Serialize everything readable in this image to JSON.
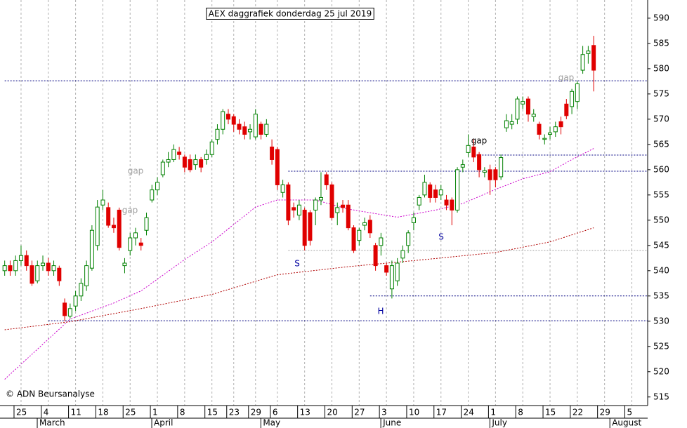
{
  "chart_data": {
    "type": "candlestick",
    "title": "AEX daggrafiek donderdag 25 jul 2019",
    "copyright": "© ADN Beursanalyse",
    "up_color": "#008000",
    "down_color": "#e00000",
    "open": [
      540,
      541,
      540,
      542,
      543,
      541,
      538,
      541,
      541.5,
      540,
      540.5,
      533.6,
      531,
      533,
      535,
      537,
      540.5,
      545,
      553,
      552.5,
      549,
      552,
      541,
      544,
      546.5,
      545.5,
      548,
      554,
      556,
      559,
      561.5,
      562,
      563.5,
      562.5,
      562,
      561,
      562,
      562,
      563,
      566,
      568,
      571,
      570.5,
      569,
      568.5,
      567.5,
      566.5,
      569,
      567,
      564.5,
      564,
      555.5,
      557,
      552.5,
      551,
      552,
      551.5,
      552,
      554,
      559,
      557,
      551.5,
      553,
      553,
      548.5,
      546,
      549,
      550,
      545,
      545,
      541,
      536.4,
      538,
      542.5,
      545,
      549.5,
      553,
      555,
      557,
      556,
      555,
      554,
      554,
      552,
      560.5,
      563.4,
      564.5,
      563,
      559.5,
      560,
      560,
      558.6,
      568.3,
      569,
      570,
      573,
      574,
      570.5,
      569,
      566,
      567,
      567.5,
      569.5,
      573,
      572.5,
      573.5,
      579.7,
      583,
      584.6
    ],
    "high": [
      542,
      542,
      543,
      545,
      544,
      542,
      542,
      543,
      542.5,
      542,
      541,
      534.5,
      533.5,
      536,
      538.5,
      542,
      549,
      554,
      556,
      553.5,
      550.5,
      552.5,
      542.5,
      547.5,
      548.5,
      546.5,
      551.5,
      557,
      558.5,
      562,
      563.5,
      565,
      564.5,
      563,
      563,
      563,
      562.5,
      564,
      566,
      569,
      572,
      572,
      571,
      570,
      569.5,
      569,
      572,
      569.5,
      570,
      566,
      564.5,
      558,
      557.5,
      553.5,
      554,
      552.5,
      552,
      554.5,
      559.5,
      559.5,
      557.5,
      553.5,
      554,
      554,
      549,
      548.5,
      550.5,
      551,
      545.5,
      547.5,
      541.5,
      542,
      542.5,
      545,
      548,
      551.5,
      555,
      559,
      557.5,
      557,
      557,
      555,
      554.5,
      560.5,
      562,
      567,
      566,
      563.5,
      560.5,
      561,
      560.5,
      563,
      571,
      571,
      574.5,
      574.5,
      574.5,
      572,
      569.5,
      567,
      568.5,
      569.5,
      570.5,
      574,
      576,
      577.5,
      584.5,
      584.5,
      586.5
    ],
    "low": [
      539,
      539,
      539,
      541,
      540,
      537,
      537.5,
      540,
      539,
      539,
      537,
      530,
      530.5,
      532,
      534,
      536,
      540,
      544,
      552,
      548.5,
      547.5,
      544,
      539.5,
      543,
      545,
      544,
      547,
      553.5,
      555,
      558.5,
      560.5,
      561.5,
      562,
      559.5,
      559.5,
      560,
      559.5,
      561,
      562.5,
      565,
      567,
      569,
      567.5,
      567,
      566,
      566,
      566,
      566,
      566.5,
      561,
      556,
      554.5,
      549,
      550.5,
      550,
      544,
      545,
      549,
      553,
      556,
      550,
      549,
      551.5,
      548,
      543.5,
      545,
      548,
      546.5,
      540,
      543,
      539,
      534.5,
      537,
      541.5,
      543.5,
      548,
      552,
      554.5,
      553.5,
      553.5,
      554,
      552,
      549,
      551.5,
      559.5,
      562.5,
      561.5,
      558.5,
      558.5,
      555,
      556.5,
      558,
      567.5,
      568,
      569,
      572,
      569.5,
      569.5,
      566,
      565,
      566,
      566.5,
      567,
      570,
      571,
      572,
      579,
      581,
      575.5
    ],
    "close": [
      541,
      540,
      542,
      543,
      541,
      537.5,
      541,
      541.5,
      540,
      541,
      538,
      531.1,
      532.5,
      535,
      537.5,
      541,
      548,
      552.6,
      554,
      549,
      548.5,
      544.6,
      541.5,
      546.5,
      547.5,
      545,
      550.5,
      556,
      557.5,
      561.5,
      562,
      564,
      563,
      560.5,
      560,
      562,
      560.5,
      563,
      565.5,
      568,
      571.5,
      570,
      569,
      568,
      567,
      568,
      571,
      567,
      569,
      562,
      557,
      557,
      550,
      552,
      553,
      545,
      546,
      554,
      554.5,
      557,
      550.5,
      552.5,
      552.5,
      548.5,
      544,
      548,
      549.5,
      547.5,
      541,
      546.5,
      539.7,
      541,
      541.5,
      544,
      547.5,
      550.5,
      554.5,
      557.5,
      554.5,
      554.5,
      556,
      553,
      552,
      560,
      561,
      564.8,
      562.5,
      560,
      559.8,
      558,
      558,
      562.4,
      569.7,
      569.5,
      574,
      573.5,
      571,
      571,
      567,
      566.2,
      567.3,
      568.5,
      568.5,
      570.7,
      575.5,
      577,
      582.8,
      583.5,
      579.7
    ],
    "moving_averages": [
      {
        "color": "#cc00cc",
        "x": [
          0,
          12,
          20,
          25,
          33,
          38,
          46,
          50,
          57,
          63,
          68,
          72,
          79,
          84,
          90,
          95,
          100,
          104,
          108
        ],
        "values": [
          518.5,
          530.4,
          533.6,
          536,
          542.2,
          545.7,
          552.6,
          554,
          554,
          552.2,
          551.3,
          550.6,
          552,
          553.3,
          556.1,
          558.2,
          559.6,
          562,
          564.2
        ]
      },
      {
        "color": "#b00000",
        "x": [
          0,
          12,
          25,
          38,
          50,
          63,
          77,
          90,
          100,
          108
        ],
        "values": [
          528.3,
          529.9,
          532.5,
          535.3,
          539.2,
          540.8,
          542.2,
          543.6,
          545.7,
          548.5
        ]
      }
    ],
    "levels": [
      {
        "value": 577.6,
        "from": 0,
        "color": "#000080"
      },
      {
        "value": 562.9,
        "from": 86,
        "color": "#000080"
      },
      {
        "value": 559.7,
        "from": 52,
        "color": "#000080"
      },
      {
        "value": 544,
        "from": 52,
        "color": "#a0a0a0"
      },
      {
        "value": 535,
        "from": 67,
        "color": "#000080"
      },
      {
        "value": 530.1,
        "from": 8,
        "color": "#000080"
      }
    ],
    "annotations": [
      {
        "text": "gap",
        "color": "#a0a0a0"
      },
      {
        "text": "gap",
        "color": "#a0a0a0"
      },
      {
        "text": "gap",
        "color": "#a0a0a0"
      },
      {
        "text": "gap",
        "color": "#000000"
      },
      {
        "text": "S",
        "color": "#0000a0"
      },
      {
        "text": "S",
        "color": "#0000a0"
      },
      {
        "text": "H",
        "color": "#0000a0"
      }
    ],
    "xlim": [
      -0.86,
      117.9
    ],
    "ylim": [
      513.3,
      593.6
    ],
    "yticks": [
      515,
      520,
      525,
      530,
      535,
      540,
      545,
      550,
      555,
      560,
      565,
      570,
      575,
      580,
      585,
      590
    ],
    "xticks": [
      {
        "value": 3,
        "label": "25"
      },
      {
        "value": 8,
        "label": "4"
      },
      {
        "value": 13,
        "label": "11"
      },
      {
        "value": 18,
        "label": "18"
      },
      {
        "value": 23,
        "label": "25"
      },
      {
        "value": 28,
        "label": "1"
      },
      {
        "value": 33,
        "label": "8"
      },
      {
        "value": 38,
        "label": "15"
      },
      {
        "value": 42,
        "label": "23"
      },
      {
        "value": 46,
        "label": "29"
      },
      {
        "value": 50,
        "label": "6"
      },
      {
        "value": 55,
        "label": "13"
      },
      {
        "value": 60,
        "label": "20"
      },
      {
        "value": 65,
        "label": "27"
      },
      {
        "value": 70,
        "label": "3"
      },
      {
        "value": 75,
        "label": "10"
      },
      {
        "value": 80,
        "label": "17"
      },
      {
        "value": 85,
        "label": "24"
      },
      {
        "value": 90,
        "label": "1"
      },
      {
        "value": 95,
        "label": "8"
      },
      {
        "value": 100,
        "label": "15"
      },
      {
        "value": 105,
        "label": "22"
      },
      {
        "value": 110,
        "label": "29"
      },
      {
        "value": 115,
        "label": "5"
      }
    ],
    "months": [
      {
        "value": 7,
        "label": "March"
      },
      {
        "value": 28,
        "label": "April"
      },
      {
        "value": 48,
        "label": "May"
      },
      {
        "value": 70,
        "label": "June"
      },
      {
        "value": 90,
        "label": "July"
      },
      {
        "value": 112,
        "label": "August"
      }
    ],
    "grid": true
  }
}
